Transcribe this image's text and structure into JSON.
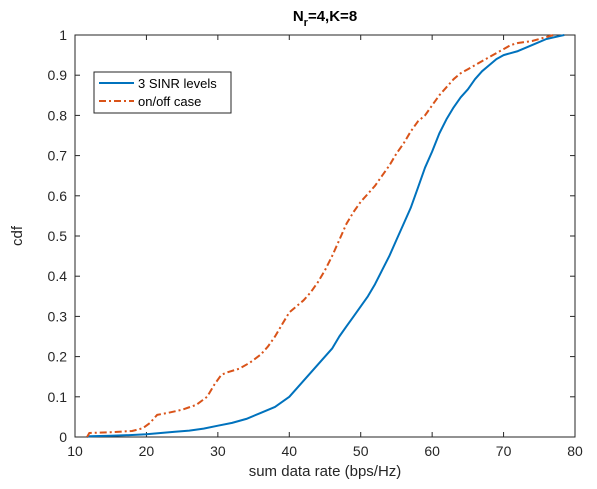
{
  "chart_data": {
    "type": "line",
    "title": {
      "main": "N",
      "sub": "r",
      "rest": "=4,K=8"
    },
    "xlabel": "sum data rate (bps/Hz)",
    "ylabel": "cdf",
    "xlim": [
      10,
      80
    ],
    "ylim": [
      0,
      1
    ],
    "xticks": [
      "10",
      "20",
      "30",
      "40",
      "50",
      "60",
      "70",
      "80"
    ],
    "yticks": [
      "0",
      "0.1",
      "0.2",
      "0.3",
      "0.4",
      "0.5",
      "0.6",
      "0.7",
      "0.8",
      "0.9",
      "1"
    ],
    "grid": false,
    "legend_position": "top-left",
    "series": [
      {
        "name": "3 SINR levels",
        "color": "#0072BD",
        "style": "solid",
        "x": [
          11.7,
          12.0,
          15.0,
          18.0,
          20.0,
          22.0,
          24.0,
          26.0,
          28.0,
          30.0,
          32.0,
          34.0,
          36.0,
          38.0,
          40.0,
          41.0,
          42.0,
          43.0,
          44.0,
          45.0,
          46.0,
          47.0,
          48.0,
          49.0,
          50.0,
          51.0,
          52.0,
          53.0,
          54.0,
          55.0,
          56.0,
          57.0,
          58.0,
          59.0,
          60.0,
          61.0,
          62.0,
          63.0,
          64.0,
          65.0,
          66.0,
          67.0,
          68.0,
          69.0,
          70.0,
          72.0,
          74.0,
          76.0,
          78.0,
          78.5
        ],
        "y": [
          0.0,
          0.002,
          0.003,
          0.005,
          0.007,
          0.01,
          0.013,
          0.016,
          0.021,
          0.028,
          0.035,
          0.045,
          0.06,
          0.075,
          0.1,
          0.12,
          0.14,
          0.16,
          0.18,
          0.2,
          0.22,
          0.25,
          0.275,
          0.3,
          0.325,
          0.35,
          0.38,
          0.415,
          0.45,
          0.49,
          0.53,
          0.57,
          0.62,
          0.67,
          0.71,
          0.755,
          0.79,
          0.82,
          0.845,
          0.865,
          0.89,
          0.91,
          0.925,
          0.94,
          0.95,
          0.96,
          0.975,
          0.99,
          0.998,
          1.0
        ],
        "sample_data": "cdf vs sum data rate"
      },
      {
        "name": "on/off case",
        "color": "#D95319",
        "style": "dashdot",
        "x": [
          11.7,
          12.0,
          15.0,
          18.0,
          19.5,
          20.5,
          21.5,
          23.0,
          25.0,
          27.0,
          28.5,
          29.5,
          30.5,
          31.5,
          33.0,
          34.5,
          36.0,
          37.0,
          38.0,
          39.0,
          40.0,
          41.0,
          42.0,
          43.0,
          44.0,
          45.0,
          46.0,
          47.0,
          48.0,
          49.0,
          50.0,
          51.0,
          52.0,
          53.0,
          54.0,
          55.0,
          56.0,
          57.0,
          58.0,
          59.0,
          60.0,
          61.0,
          62.0,
          63.0,
          64.0,
          65.0,
          66.0,
          67.0,
          68.0,
          69.0,
          70.0,
          71.0,
          72.0,
          74.0,
          76.0,
          77.0
        ],
        "y": [
          0.0,
          0.01,
          0.012,
          0.015,
          0.022,
          0.035,
          0.055,
          0.06,
          0.068,
          0.08,
          0.1,
          0.13,
          0.155,
          0.162,
          0.17,
          0.185,
          0.205,
          0.225,
          0.25,
          0.28,
          0.31,
          0.325,
          0.34,
          0.36,
          0.385,
          0.415,
          0.45,
          0.49,
          0.53,
          0.56,
          0.585,
          0.605,
          0.625,
          0.65,
          0.675,
          0.705,
          0.73,
          0.76,
          0.785,
          0.8,
          0.825,
          0.85,
          0.87,
          0.89,
          0.905,
          0.915,
          0.925,
          0.935,
          0.945,
          0.955,
          0.965,
          0.975,
          0.98,
          0.985,
          0.995,
          1.0
        ]
      }
    ]
  }
}
